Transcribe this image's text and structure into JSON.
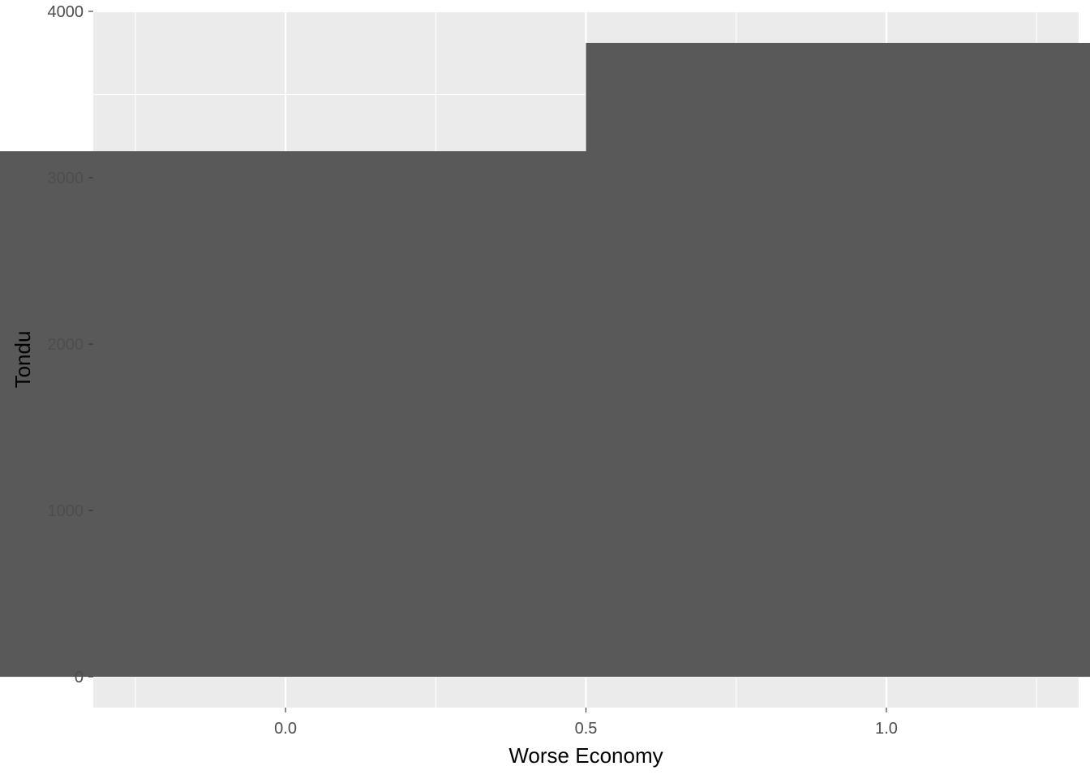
{
  "chart_data": {
    "type": "bar",
    "title": "",
    "xlabel": "Worse Economy",
    "ylabel": "Tondu",
    "x": [
      0,
      1
    ],
    "values": [
      3160,
      3810
    ],
    "bar_width": 1,
    "xlim": [
      -0.32,
      1.32
    ],
    "ylim": [
      -185,
      4000
    ],
    "x_ticks": [
      0.0,
      0.5,
      1.0
    ],
    "x_tick_labels": [
      "0.0",
      "0.5",
      "1.0"
    ],
    "x_minor_ticks": [
      -0.25,
      0.25,
      0.75,
      1.25
    ],
    "y_ticks": [
      0,
      1000,
      2000,
      3000,
      4000
    ],
    "y_tick_labels": [
      "0",
      "1000",
      "2000",
      "3000",
      "4000"
    ],
    "y_minor_ticks": [
      500,
      1500,
      2500,
      3500
    ],
    "grid": true,
    "legend": "none",
    "colors": {
      "panel_background": "#ebebeb",
      "grid_line": "#ffffff",
      "bar_fill": "#595959",
      "tick_label": "#4d4d4d",
      "axis_title": "#000000",
      "tick_mark": "#333333"
    }
  }
}
